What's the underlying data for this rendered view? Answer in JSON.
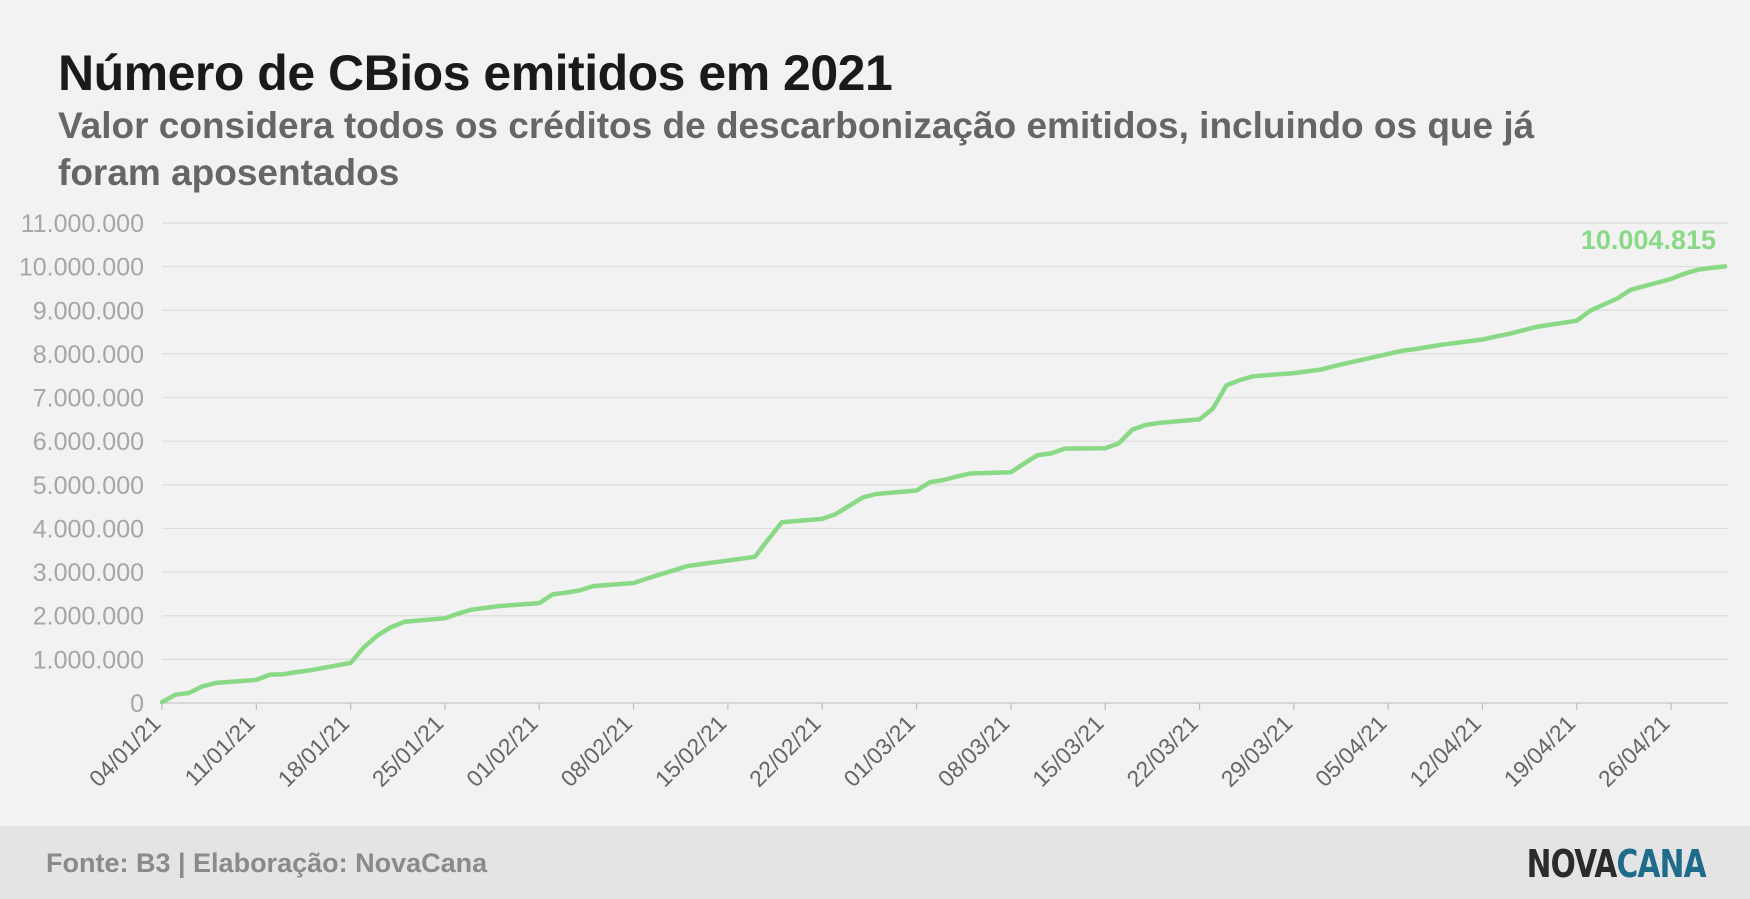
{
  "chart_data": {
    "type": "line",
    "title": "Número de CBios emitidos em 2021",
    "subtitle": "Valor considera todos os créditos de descarbonização emitidos, incluindo os que já foram aposentados",
    "xlabel": "",
    "ylabel": "",
    "ylim": [
      0,
      11000000
    ],
    "y_ticks": [
      "0",
      "1.000.000",
      "2.000.000",
      "3.000.000",
      "4.000.000",
      "5.000.000",
      "6.000.000",
      "7.000.000",
      "8.000.000",
      "9.000.000",
      "10.000.000",
      "11.000.000"
    ],
    "x_ticks": [
      "04/01/21",
      "11/01/21",
      "18/01/21",
      "25/01/21",
      "01/02/21",
      "08/02/21",
      "15/02/21",
      "22/02/21",
      "01/03/21",
      "08/03/21",
      "15/03/21",
      "22/03/21",
      "29/03/21",
      "05/04/21",
      "12/04/21",
      "19/04/21",
      "26/04/21"
    ],
    "grid": true,
    "color": "#8ad987",
    "series": [
      {
        "x": [
          "04/01/21",
          "05/01/21",
          "06/01/21",
          "07/01/21",
          "08/01/21",
          "11/01/21",
          "12/01/21",
          "13/01/21",
          "14/01/21",
          "15/01/21",
          "18/01/21",
          "19/01/21",
          "20/01/21",
          "21/01/21",
          "22/01/21",
          "25/01/21",
          "26/01/21",
          "27/01/21",
          "28/01/21",
          "29/01/21",
          "01/02/21",
          "02/02/21",
          "03/02/21",
          "04/02/21",
          "05/02/21",
          "08/02/21",
          "09/02/21",
          "10/02/21",
          "11/02/21",
          "12/02/21",
          "17/02/21",
          "18/02/21",
          "19/02/21",
          "22/02/21",
          "23/02/21",
          "24/02/21",
          "25/02/21",
          "26/02/21",
          "01/03/21",
          "02/03/21",
          "03/03/21",
          "04/03/21",
          "05/03/21",
          "08/03/21",
          "09/03/21",
          "10/03/21",
          "11/03/21",
          "12/03/21",
          "15/03/21",
          "16/03/21",
          "17/03/21",
          "18/03/21",
          "19/03/21",
          "22/03/21",
          "23/03/21",
          "24/03/21",
          "25/03/21",
          "26/03/21",
          "29/03/21",
          "30/03/21",
          "31/03/21",
          "01/04/21",
          "05/04/21",
          "06/04/21",
          "07/04/21",
          "08/04/21",
          "09/04/21",
          "12/04/21",
          "13/04/21",
          "14/04/21",
          "15/04/21",
          "16/04/21",
          "19/04/21",
          "20/04/21",
          "22/04/21",
          "23/04/21",
          "26/04/21",
          "27/04/21",
          "28/04/21",
          "29/04/21",
          "30/04/21"
        ],
        "values": [
          20000,
          190000,
          230000,
          380000,
          460000,
          530000,
          650000,
          660000,
          710000,
          750000,
          920000,
          1280000,
          1550000,
          1740000,
          1860000,
          1940000,
          2050000,
          2140000,
          2180000,
          2220000,
          2290000,
          2490000,
          2530000,
          2580000,
          2680000,
          2750000,
          2850000,
          2950000,
          3040000,
          3140000,
          3350000,
          3750000,
          4140000,
          4220000,
          4330000,
          4520000,
          4710000,
          4790000,
          4870000,
          5060000,
          5110000,
          5190000,
          5260000,
          5290000,
          5490000,
          5680000,
          5720000,
          5830000,
          5840000,
          5950000,
          6260000,
          6370000,
          6420000,
          6500000,
          6750000,
          7280000,
          7400000,
          7490000,
          7560000,
          7600000,
          7640000,
          7720000,
          8000000,
          8070000,
          8110000,
          8160000,
          8210000,
          8330000,
          8400000,
          8460000,
          8540000,
          8620000,
          8760000,
          8990000,
          9270000,
          9470000,
          9720000,
          9840000,
          9930000,
          9970000,
          10004815
        ]
      }
    ],
    "annotation": "10.004.815"
  },
  "footer": {
    "source": "Fonte: B3 | Elaboração: NovaCana",
    "logo_part1": "NOVA",
    "logo_part2": "CANA"
  }
}
